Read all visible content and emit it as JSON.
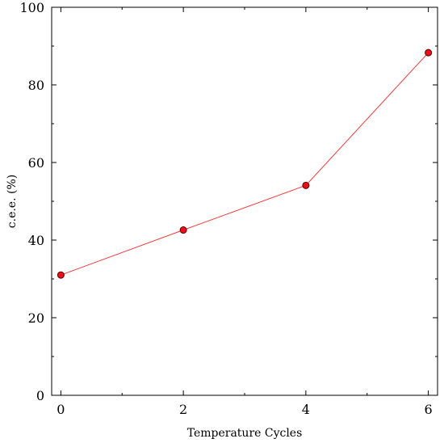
{
  "chart_data": {
    "type": "line",
    "xlabel": "Temperature Cycles",
    "ylabel": "c.e.e. (%)",
    "x": [
      0,
      2,
      4,
      6
    ],
    "y": [
      31,
      42.6,
      54.1,
      88.3
    ],
    "xlim": [
      -0.15,
      6.15
    ],
    "ylim": [
      0,
      100
    ],
    "x_ticks": [
      0,
      2,
      4,
      6
    ],
    "x_tick_labels": [
      "0",
      "2",
      "4",
      "6"
    ],
    "x_minor_ticks": [
      1,
      3,
      5
    ],
    "y_ticks": [
      0,
      20,
      40,
      60,
      80,
      100
    ],
    "y_tick_labels": [
      "0",
      "20",
      "40",
      "60",
      "80",
      "100"
    ],
    "y_minor_ticks": [
      10,
      30,
      50,
      70,
      90
    ],
    "grid": false,
    "legend": "none",
    "line_color": "#f03c3c",
    "marker_fill": "#e8111b",
    "marker_edge": "#5a0000"
  }
}
